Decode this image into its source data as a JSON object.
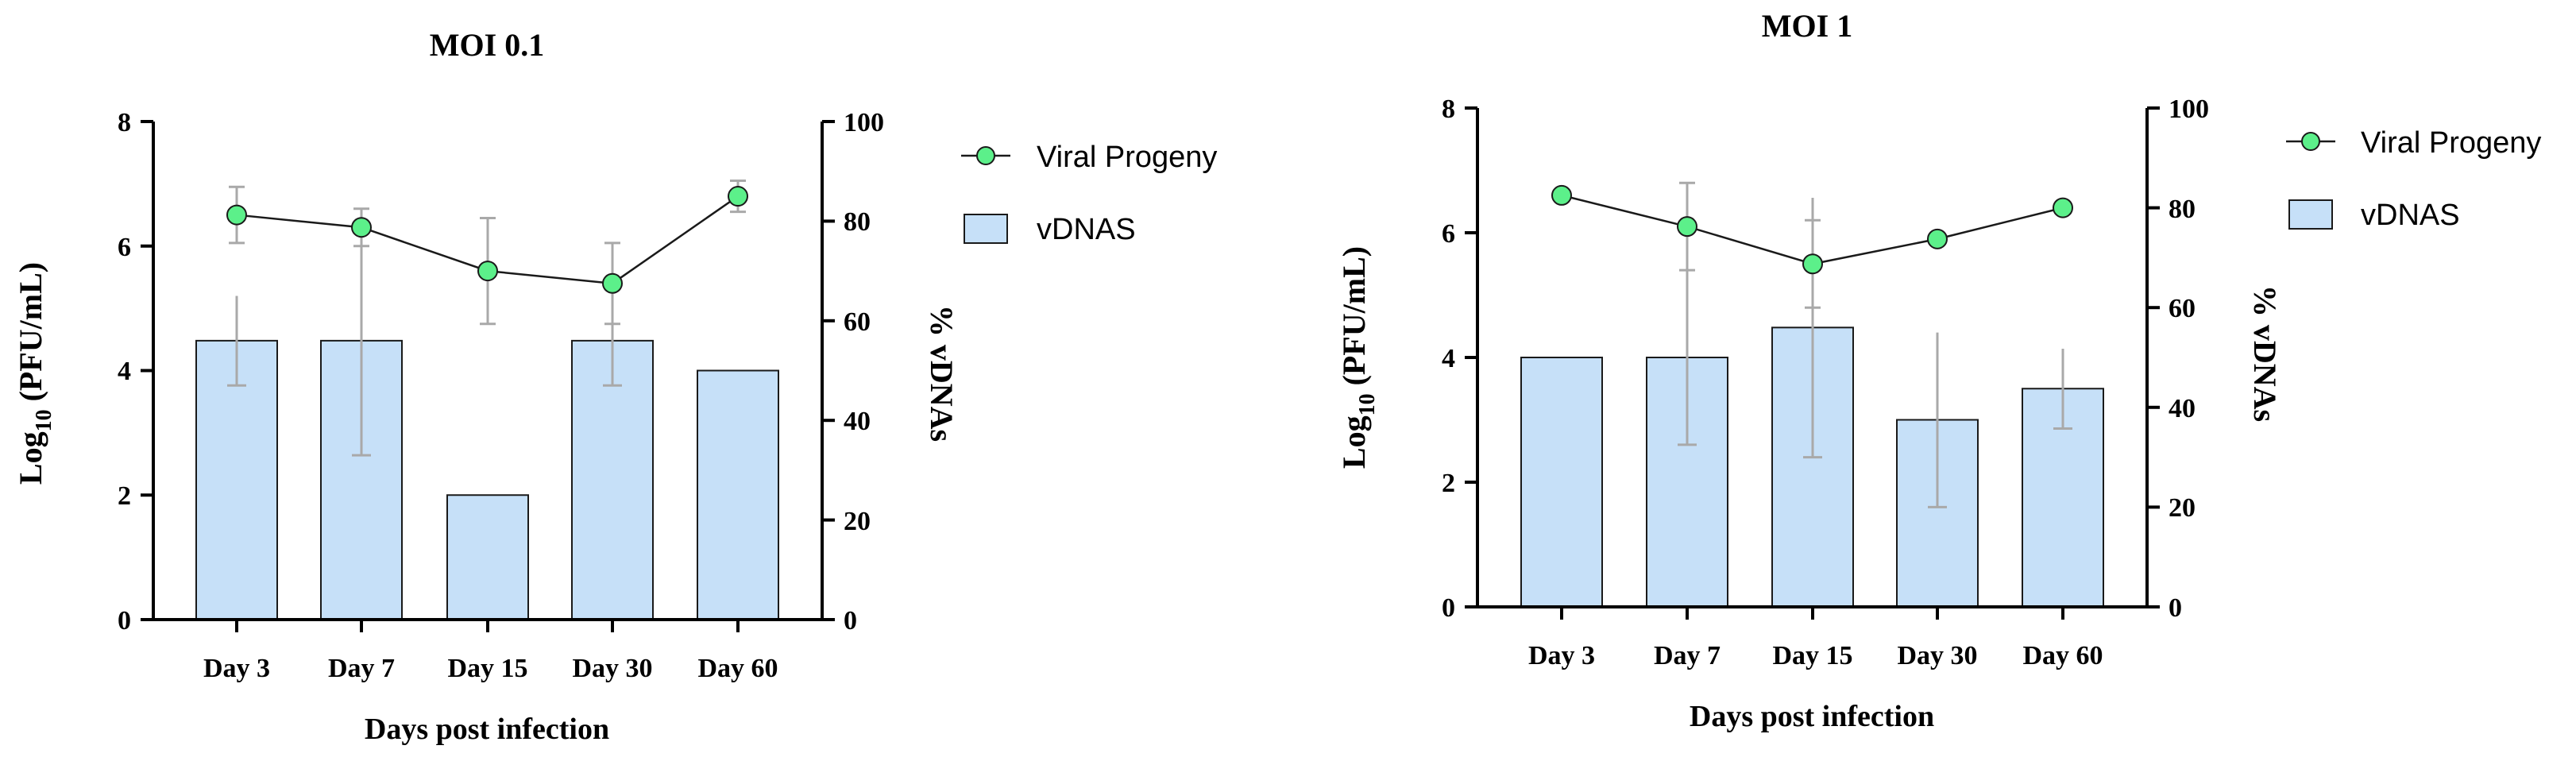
{
  "colors": {
    "bar_fill": "#c6e0f8",
    "point_fill": "#5cf08a",
    "error_bar": "#a9a9a9",
    "axis": "#000000"
  },
  "chart_data": [
    {
      "type": "bar",
      "title": "MOI 0.1",
      "xlabel": "Days post infection",
      "ylabel_left": "Log10 (PFU/mL)",
      "ylabel_right": "% vDNAs",
      "ylim_left": [
        0,
        8
      ],
      "ylim_right": [
        0,
        100
      ],
      "yticks_left": [
        "0",
        "2",
        "4",
        "6",
        "8"
      ],
      "yticks_right": [
        "0",
        "20",
        "40",
        "60",
        "80",
        "100"
      ],
      "categories": [
        "Day 3",
        "Day 7",
        "Day 15",
        "Day 30",
        "Day 60"
      ],
      "legend": [
        "Viral Progeny",
        "vDNAS"
      ],
      "series": [
        {
          "name": "Viral Progeny",
          "type": "line",
          "axis": "left",
          "values": [
            6.5,
            6.3,
            5.6,
            5.4,
            6.8
          ],
          "errors": [
            0.45,
            0.3,
            0.85,
            0.65,
            0.25
          ]
        },
        {
          "name": "vDNAS",
          "type": "bar",
          "axis": "right",
          "values": [
            56,
            56,
            25,
            56,
            50
          ],
          "errors": [
            9,
            23,
            0,
            9,
            0
          ]
        }
      ]
    },
    {
      "type": "bar",
      "title": "MOI 1",
      "xlabel": "Days post infection",
      "ylabel_left": "Log10 (PFU/mL)",
      "ylabel_right": "% vDNAs",
      "ylim_left": [
        0,
        8
      ],
      "ylim_right": [
        0,
        100
      ],
      "yticks_left": [
        "0",
        "2",
        "4",
        "6",
        "8"
      ],
      "yticks_right": [
        "0",
        "20",
        "40",
        "60",
        "80",
        "100"
      ],
      "categories": [
        "Day 3",
        "Day 7",
        "Day 15",
        "Day 30",
        "Day 60"
      ],
      "legend": [
        "Viral Progeny",
        "vDNAS"
      ],
      "series": [
        {
          "name": "Viral Progeny",
          "type": "line",
          "axis": "left",
          "values": [
            6.6,
            6.1,
            5.5,
            5.9,
            6.4
          ],
          "errors": [
            0,
            0.7,
            0.7,
            0,
            0
          ]
        },
        {
          "name": "vDNAS",
          "type": "bar",
          "axis": "right",
          "values": [
            50,
            50,
            56,
            37.5,
            43.75
          ],
          "errors": [
            0,
            17.5,
            26,
            17.5,
            8
          ]
        }
      ]
    }
  ]
}
